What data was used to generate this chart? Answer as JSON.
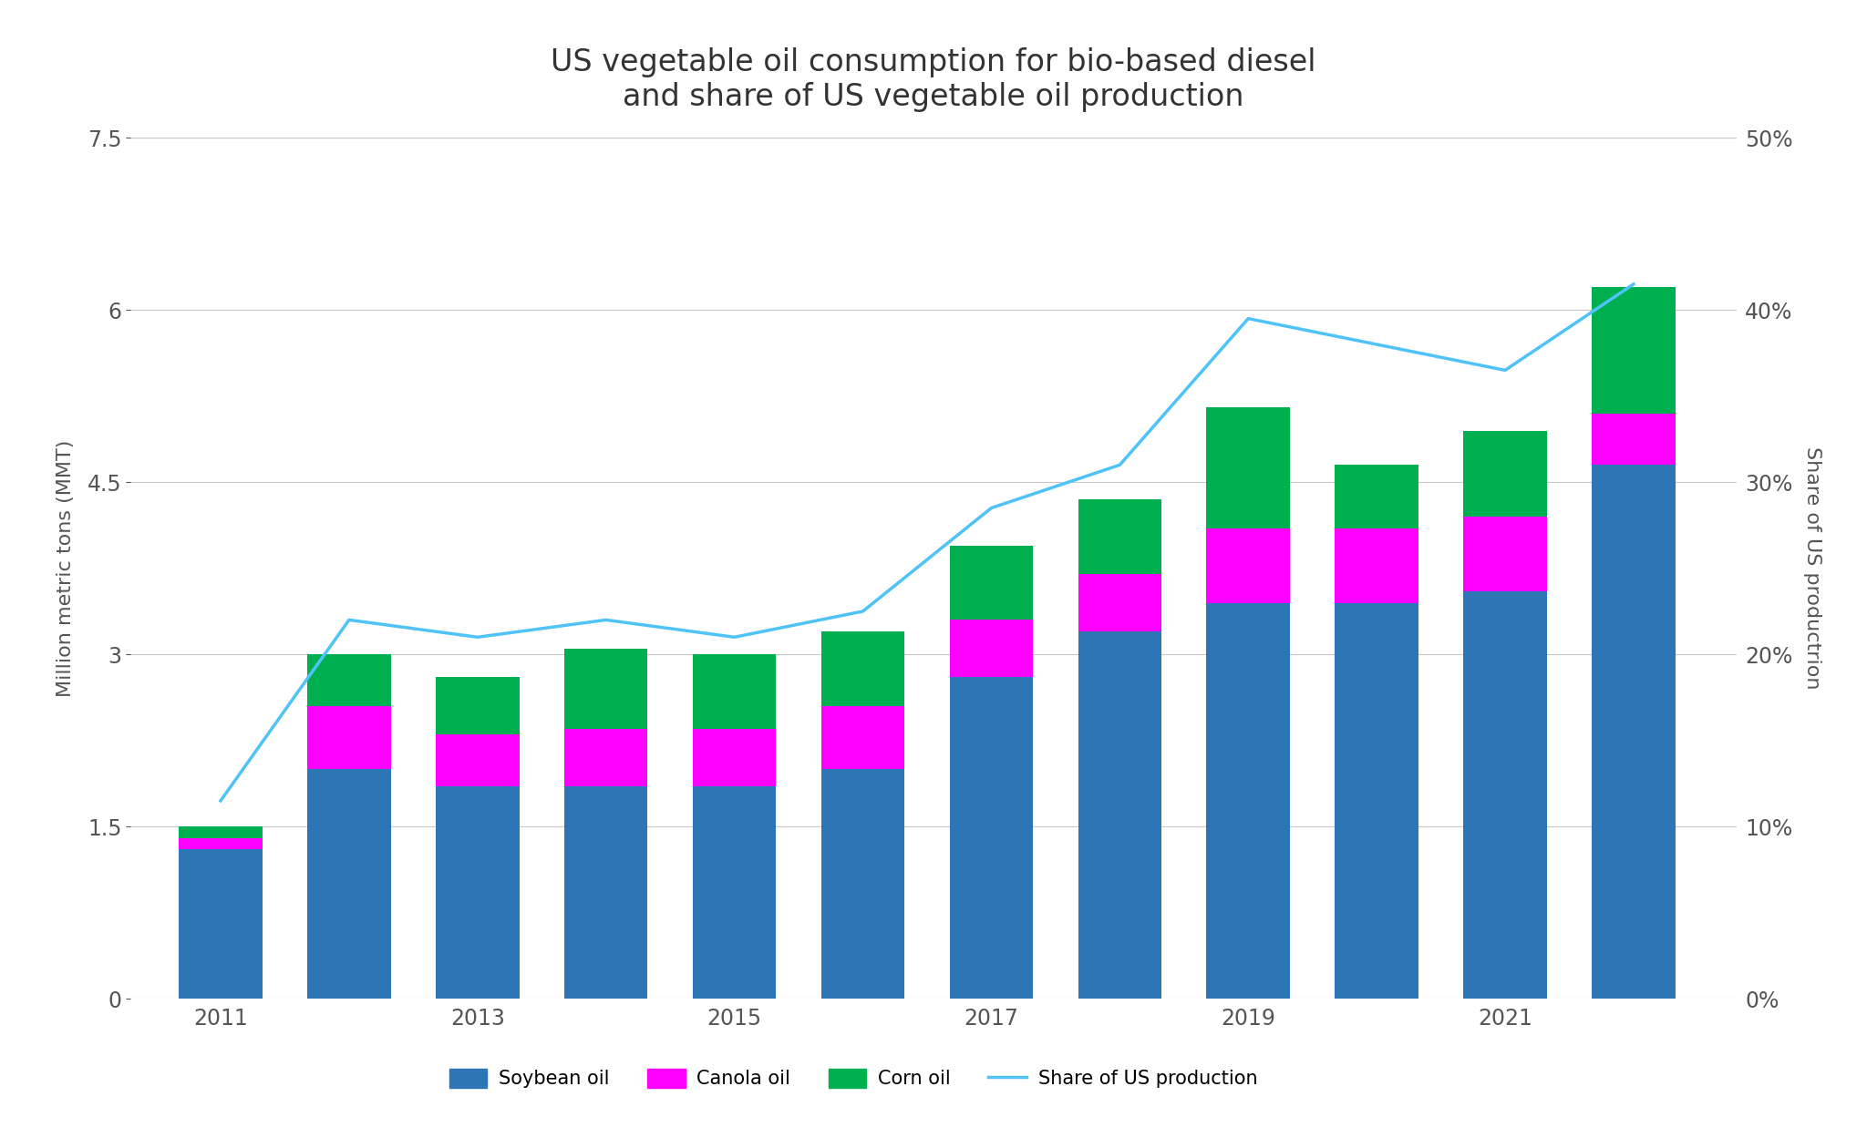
{
  "title": "US vegetable oil consumption for bio-based diesel\nand share of US vegetable oil production",
  "years": [
    2011,
    2012,
    2013,
    2014,
    2015,
    2016,
    2017,
    2018,
    2019,
    2020,
    2021,
    2022
  ],
  "soybean": [
    1.3,
    2.0,
    1.85,
    1.85,
    1.85,
    2.0,
    2.8,
    3.2,
    3.45,
    3.45,
    3.55,
    4.65
  ],
  "canola": [
    0.1,
    0.55,
    0.45,
    0.5,
    0.5,
    0.55,
    0.5,
    0.5,
    0.65,
    0.65,
    0.65,
    0.45
  ],
  "corn": [
    0.1,
    0.45,
    0.5,
    0.7,
    0.65,
    0.65,
    0.65,
    0.65,
    1.05,
    0.55,
    0.75,
    1.1
  ],
  "share_years": [
    2011,
    2012,
    2013,
    2014,
    2015,
    2016,
    2017,
    2018,
    2019,
    2020,
    2021,
    2022
  ],
  "share": [
    11.5,
    22.0,
    21.0,
    22.0,
    21.0,
    22.5,
    28.5,
    31.0,
    39.5,
    38.0,
    36.5,
    41.5
  ],
  "bar_color_soybean": "#2E75B6",
  "bar_color_canola": "#FF00FF",
  "bar_color_corn": "#00B050",
  "line_color": "#4FC3F7",
  "ylabel_left": "Million metric tons (MMT)",
  "ylabel_right": "Share of US productrion",
  "ylim_left": [
    0,
    7.5
  ],
  "ylim_right": [
    0,
    50
  ],
  "yticks_left": [
    0,
    1.5,
    3.0,
    4.5,
    6.0,
    7.5
  ],
  "ytick_labels_left": [
    "0",
    "1.5",
    "3",
    "4.5",
    "6",
    "7.5"
  ],
  "yticks_right": [
    0,
    10,
    20,
    30,
    40,
    50
  ],
  "ytick_labels_right": [
    "0%",
    "10%",
    "20%",
    "30%",
    "40%",
    "50%"
  ],
  "xticks": [
    2011,
    2013,
    2015,
    2017,
    2019,
    2021
  ],
  "xtick_labels": [
    "2011",
    "2013",
    "2015",
    "2017",
    "2019",
    "2021"
  ],
  "legend_labels": [
    "Soybean oil",
    "Canola oil",
    "Corn oil",
    "Share of US production"
  ],
  "background_color": "#FFFFFF",
  "grid_color": "#C8C8C8",
  "title_fontsize": 24,
  "label_fontsize": 16,
  "tick_fontsize": 17,
  "legend_fontsize": 15,
  "bar_width": 0.65
}
